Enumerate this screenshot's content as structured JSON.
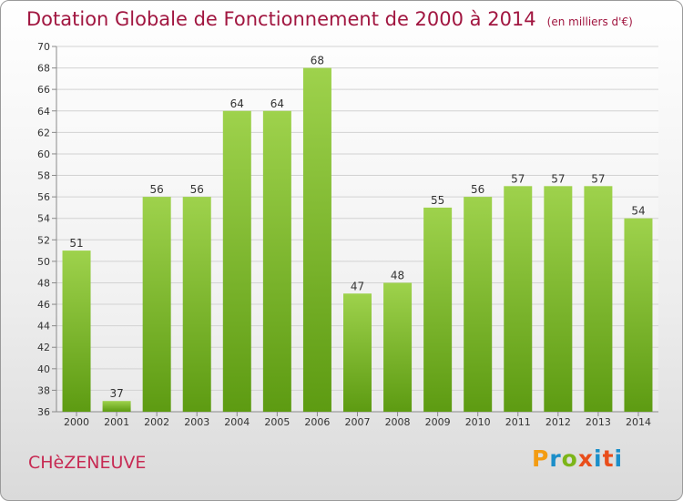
{
  "header": {
    "title": "Dotation Globale de Fonctionnement de 2000 à 2014",
    "subtitle": "(en milliers d'€)"
  },
  "commune": "CHèZENEUVE",
  "logo": "Proxiti",
  "colors": {
    "bar_light": "#9ed24c",
    "bar_dark": "#5d9b12",
    "title": "#a11640"
  },
  "chart_data": {
    "type": "bar",
    "title": "Dotation Globale de Fonctionnement de 2000 à 2014",
    "subtitle": "(en milliers d'€)",
    "categories": [
      "2000",
      "2001",
      "2002",
      "2003",
      "2004",
      "2005",
      "2006",
      "2007",
      "2008",
      "2009",
      "2010",
      "2011",
      "2012",
      "2013",
      "2014"
    ],
    "values": [
      51,
      37,
      56,
      56,
      64,
      64,
      68,
      47,
      48,
      55,
      56,
      57,
      57,
      57,
      54
    ],
    "ylim": [
      36,
      70
    ],
    "yticks": [
      36,
      38,
      40,
      42,
      44,
      46,
      48,
      50,
      52,
      54,
      56,
      58,
      60,
      62,
      64,
      66,
      68,
      70
    ],
    "grid": true,
    "legend": "none"
  }
}
